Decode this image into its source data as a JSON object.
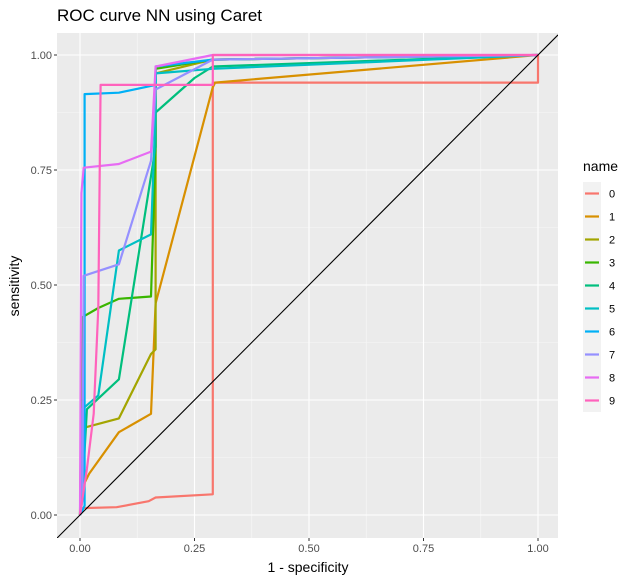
{
  "chart_data": {
    "type": "line",
    "title": "ROC curve NN using Caret",
    "xlabel": "1 - specificity",
    "ylabel": "sensitivity",
    "xlim": [
      0,
      1
    ],
    "ylim": [
      0,
      1
    ],
    "x_ticks": [
      "0.00",
      "0.25",
      "0.50",
      "0.75",
      "1.00"
    ],
    "y_ticks": [
      "0.00",
      "0.25",
      "0.50",
      "0.75",
      "1.00"
    ],
    "grid": true,
    "legend_title": "name",
    "legend_position": "right",
    "reference_line": "diagonal",
    "series": [
      {
        "name": "0",
        "color": "#F8766D",
        "points": [
          [
            0,
            0
          ],
          [
            0.005,
            0.015
          ],
          [
            0.08,
            0.017
          ],
          [
            0.15,
            0.03
          ],
          [
            0.165,
            0.038
          ],
          [
            0.29,
            0.045
          ],
          [
            0.29,
            0.94
          ],
          [
            0.29,
            0.94
          ],
          [
            1,
            0.94
          ],
          [
            1,
            1
          ]
        ]
      },
      {
        "name": "1",
        "color": "#D89000",
        "points": [
          [
            0,
            0
          ],
          [
            0.005,
            0.06
          ],
          [
            0.02,
            0.09
          ],
          [
            0.085,
            0.18
          ],
          [
            0.155,
            0.22
          ],
          [
            0.165,
            0.46
          ],
          [
            0.29,
            0.93
          ],
          [
            0.295,
            0.94
          ],
          [
            1,
            1
          ]
        ]
      },
      {
        "name": "2",
        "color": "#A3A500",
        "points": [
          [
            0,
            0
          ],
          [
            0.005,
            0.18
          ],
          [
            0.01,
            0.19
          ],
          [
            0.085,
            0.21
          ],
          [
            0.155,
            0.35
          ],
          [
            0.165,
            0.36
          ],
          [
            0.165,
            0.96
          ],
          [
            0.29,
            0.99
          ],
          [
            1,
            1
          ]
        ]
      },
      {
        "name": "3",
        "color": "#39B600",
        "points": [
          [
            0,
            0
          ],
          [
            0.005,
            0.43
          ],
          [
            0.04,
            0.45
          ],
          [
            0.085,
            0.47
          ],
          [
            0.155,
            0.475
          ],
          [
            0.165,
            0.8
          ],
          [
            0.165,
            0.97
          ],
          [
            0.29,
            0.99
          ],
          [
            1,
            1
          ]
        ]
      },
      {
        "name": "4",
        "color": "#00BF7D",
        "points": [
          [
            0,
            0
          ],
          [
            0.005,
            0.05
          ],
          [
            0.015,
            0.23
          ],
          [
            0.085,
            0.295
          ],
          [
            0.165,
            0.8
          ],
          [
            0.165,
            0.875
          ],
          [
            0.25,
            0.95
          ],
          [
            0.29,
            0.975
          ],
          [
            1,
            1
          ]
        ]
      },
      {
        "name": "5",
        "color": "#00BFC4",
        "points": [
          [
            0,
            0
          ],
          [
            0.005,
            0.23
          ],
          [
            0.04,
            0.26
          ],
          [
            0.085,
            0.575
          ],
          [
            0.155,
            0.61
          ],
          [
            0.165,
            0.88
          ],
          [
            0.165,
            0.96
          ],
          [
            0.29,
            0.97
          ],
          [
            1,
            1
          ]
        ]
      },
      {
        "name": "6",
        "color": "#00B0F6",
        "points": [
          [
            0,
            0
          ],
          [
            0.01,
            0.02
          ],
          [
            0.01,
            0.915
          ],
          [
            0.085,
            0.918
          ],
          [
            0.165,
            0.935
          ],
          [
            0.165,
            0.975
          ],
          [
            0.29,
            0.99
          ],
          [
            1,
            1
          ]
        ]
      },
      {
        "name": "7",
        "color": "#9590FF",
        "points": [
          [
            0,
            0
          ],
          [
            0.005,
            0.03
          ],
          [
            0.008,
            0.52
          ],
          [
            0.085,
            0.545
          ],
          [
            0.155,
            0.77
          ],
          [
            0.165,
            0.925
          ],
          [
            0.29,
            0.99
          ],
          [
            1,
            1
          ]
        ]
      },
      {
        "name": "8",
        "color": "#E76BF3",
        "points": [
          [
            0,
            0
          ],
          [
            0.003,
            0.7
          ],
          [
            0.008,
            0.755
          ],
          [
            0.085,
            0.763
          ],
          [
            0.155,
            0.79
          ],
          [
            0.165,
            0.975
          ],
          [
            0.29,
            1.0
          ],
          [
            1,
            1
          ]
        ]
      },
      {
        "name": "9",
        "color": "#FF62BC",
        "points": [
          [
            0,
            0
          ],
          [
            0.015,
            0.1
          ],
          [
            0.03,
            0.22
          ],
          [
            0.04,
            0.45
          ],
          [
            0.045,
            0.935
          ],
          [
            0.29,
            0.935
          ],
          [
            0.29,
            1.0
          ],
          [
            1,
            1
          ]
        ]
      }
    ]
  }
}
